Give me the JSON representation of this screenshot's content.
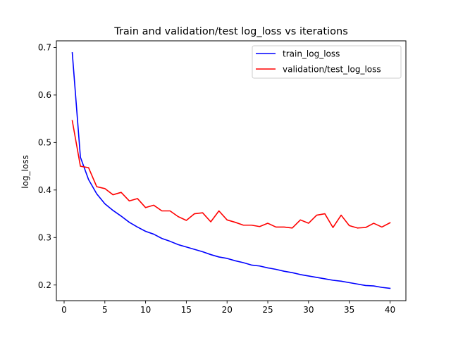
{
  "chart_data": {
    "type": "line",
    "title": "Train and validation/test log_loss vs iterations",
    "xlabel": "",
    "ylabel": "log_loss",
    "xlim": [
      -0.95,
      41.95
    ],
    "ylim": [
      0.167,
      0.714
    ],
    "xticks": [
      0,
      5,
      10,
      15,
      20,
      25,
      30,
      35,
      40
    ],
    "yticks": [
      0.2,
      0.3,
      0.4,
      0.5,
      0.6,
      0.7
    ],
    "ytick_labels": [
      "0.2",
      "0.3",
      "0.4",
      "0.5",
      "0.6",
      "0.7"
    ],
    "grid": false,
    "legend_position": "top-right",
    "x": [
      1,
      2,
      3,
      4,
      5,
      6,
      7,
      8,
      9,
      10,
      11,
      12,
      13,
      14,
      15,
      16,
      17,
      18,
      19,
      20,
      21,
      22,
      23,
      24,
      25,
      26,
      27,
      28,
      29,
      30,
      31,
      32,
      33,
      34,
      35,
      36,
      37,
      38,
      39,
      40
    ],
    "series": [
      {
        "name": "train_log_loss",
        "color": "#0000ff",
        "values": [
          0.689,
          0.469,
          0.422,
          0.392,
          0.371,
          0.357,
          0.345,
          0.332,
          0.322,
          0.313,
          0.307,
          0.298,
          0.292,
          0.285,
          0.28,
          0.275,
          0.27,
          0.264,
          0.259,
          0.256,
          0.251,
          0.247,
          0.242,
          0.24,
          0.236,
          0.233,
          0.229,
          0.226,
          0.222,
          0.219,
          0.216,
          0.213,
          0.21,
          0.208,
          0.205,
          0.202,
          0.199,
          0.198,
          0.195,
          0.193
        ]
      },
      {
        "name": "validation/test_log_loss",
        "color": "#ff0000",
        "values": [
          0.546,
          0.45,
          0.447,
          0.407,
          0.403,
          0.39,
          0.395,
          0.377,
          0.382,
          0.363,
          0.368,
          0.356,
          0.356,
          0.344,
          0.336,
          0.35,
          0.352,
          0.333,
          0.356,
          0.337,
          0.332,
          0.326,
          0.326,
          0.323,
          0.33,
          0.322,
          0.322,
          0.32,
          0.337,
          0.33,
          0.347,
          0.35,
          0.321,
          0.347,
          0.325,
          0.32,
          0.321,
          0.33,
          0.322,
          0.331
        ]
      }
    ]
  }
}
